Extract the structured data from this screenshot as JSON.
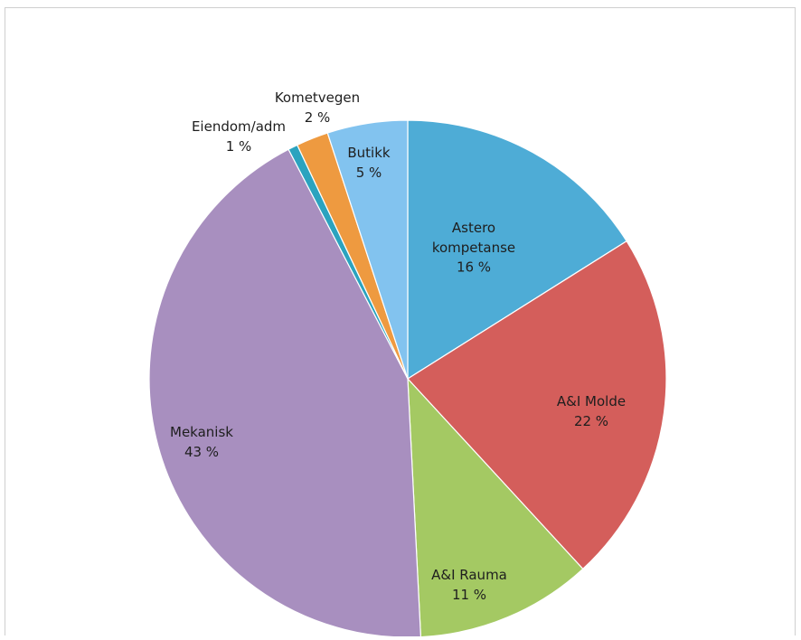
{
  "chart_data": {
    "type": "pie",
    "title": "",
    "start_angle_deg": 0,
    "direction": "clockwise",
    "slices": [
      {
        "name": "Astero kompetanse",
        "label_lines": [
          "Astero",
          "kompetanse",
          "16 %"
        ],
        "value": 16,
        "color": "#4eacd6"
      },
      {
        "name": "A&I Molde",
        "label_lines": [
          "A&I Molde",
          "22 %"
        ],
        "value": 22,
        "color": "#d45e5b"
      },
      {
        "name": "A&I Rauma",
        "label_lines": [
          "A&I Rauma",
          "11 %"
        ],
        "value": 11,
        "color": "#a4c963"
      },
      {
        "name": "Mekanisk",
        "label_lines": [
          "Mekanisk",
          "43 %"
        ],
        "value": 43,
        "color": "#a88fbf"
      },
      {
        "name": "Eiendom/adm",
        "label_lines": [
          "Eiendom/adm",
          "1 %"
        ],
        "value": 0.6,
        "color": "#2ba3bf"
      },
      {
        "name": "Kometvegen",
        "label_lines": [
          "Kometvegen",
          "2 %"
        ],
        "value": 2,
        "color": "#ee9a40"
      },
      {
        "name": "Butikk",
        "label_lines": [
          "Butikk",
          "5 %"
        ],
        "value": 5,
        "color": "#82c3ef"
      }
    ]
  }
}
